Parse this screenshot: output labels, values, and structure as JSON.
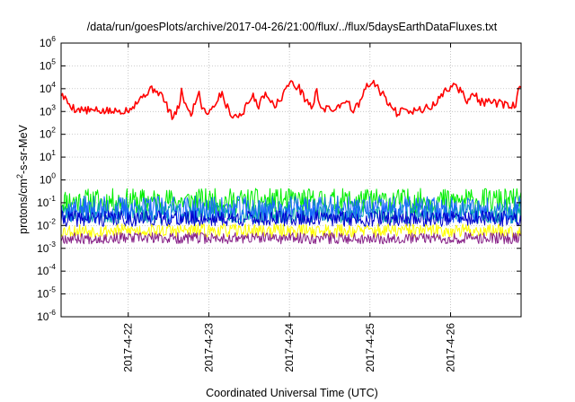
{
  "chart_data": {
    "type": "line",
    "title": "/data/run/goesPlots/archive/2017-04-26/21:00/flux/../flux/5daysEarthDataFluxes.txt",
    "xlabel": "Coordinated Universal Time (UTC)",
    "ylabel": {
      "prefix": "protons/cm",
      "sup": "2",
      "suffix": "-s-sr-MeV"
    },
    "yscale": "log",
    "ylim": [
      1e-06,
      1000000.0
    ],
    "y_ticks": [
      {
        "base": "10",
        "exp": "-6",
        "value": 1e-06
      },
      {
        "base": "10",
        "exp": "-5",
        "value": 1e-05
      },
      {
        "base": "10",
        "exp": "-4",
        "value": 0.0001
      },
      {
        "base": "10",
        "exp": "-3",
        "value": 0.001
      },
      {
        "base": "10",
        "exp": "-2",
        "value": 0.01
      },
      {
        "base": "10",
        "exp": "-1",
        "value": 0.1
      },
      {
        "base": "10",
        "exp": "0",
        "value": 1
      },
      {
        "base": "10",
        "exp": "1",
        "value": 10
      },
      {
        "base": "10",
        "exp": "2",
        "value": 100
      },
      {
        "base": "10",
        "exp": "3",
        "value": 1000
      },
      {
        "base": "10",
        "exp": "4",
        "value": 10000
      },
      {
        "base": "10",
        "exp": "5",
        "value": 100000
      },
      {
        "base": "10",
        "exp": "6",
        "value": 1000000
      }
    ],
    "xlim": [
      "2017-04-21T04:00",
      "2017-04-26T21:00"
    ],
    "x_ticks": [
      {
        "label": "2017-4-22",
        "value": "2017-04-22T00:00"
      },
      {
        "label": "2017-4-23",
        "value": "2017-04-23T00:00"
      },
      {
        "label": "2017-4-24",
        "value": "2017-04-24T00:00"
      },
      {
        "label": "2017-4-25",
        "value": "2017-04-25T00:00"
      },
      {
        "label": "2017-4-26",
        "value": "2017-04-26T00:00"
      }
    ],
    "grid": true,
    "series": [
      {
        "color": "#ff0000",
        "style": "profile",
        "noise": 0.18,
        "points": [
          [
            "2017-04-21T04:00",
            6000
          ],
          [
            "2017-04-21T06:00",
            2500
          ],
          [
            "2017-04-21T08:00",
            1300
          ],
          [
            "2017-04-21T12:00",
            1100
          ],
          [
            "2017-04-21T16:00",
            1050
          ],
          [
            "2017-04-21T20:00",
            1000
          ],
          [
            "2017-04-22T00:00",
            1200
          ],
          [
            "2017-04-22T03:00",
            3000
          ],
          [
            "2017-04-22T06:00",
            8000
          ],
          [
            "2017-04-22T08:00",
            10000
          ],
          [
            "2017-04-22T10:00",
            5000
          ],
          [
            "2017-04-22T12:00",
            1200
          ],
          [
            "2017-04-22T13:30",
            500
          ],
          [
            "2017-04-22T15:00",
            1500
          ],
          [
            "2017-04-22T16:00",
            9000
          ],
          [
            "2017-04-22T17:00",
            2000
          ],
          [
            "2017-04-22T18:30",
            700
          ],
          [
            "2017-04-22T20:00",
            2500
          ],
          [
            "2017-04-22T21:00",
            8000
          ],
          [
            "2017-04-22T22:00",
            1500
          ],
          [
            "2017-04-23T00:00",
            900
          ],
          [
            "2017-04-23T02:00",
            2500
          ],
          [
            "2017-04-23T04:00",
            7000
          ],
          [
            "2017-04-23T05:00",
            2000
          ],
          [
            "2017-04-23T07:00",
            700
          ],
          [
            "2017-04-23T09:00",
            600
          ],
          [
            "2017-04-23T11:00",
            1500
          ],
          [
            "2017-04-23T13:00",
            5000
          ],
          [
            "2017-04-23T15:00",
            1800
          ],
          [
            "2017-04-23T17:00",
            8000
          ],
          [
            "2017-04-23T19:00",
            2000
          ],
          [
            "2017-04-23T21:00",
            2500
          ],
          [
            "2017-04-23T23:00",
            12000
          ],
          [
            "2017-04-24T01:00",
            18000
          ],
          [
            "2017-04-24T03:00",
            10000
          ],
          [
            "2017-04-24T05:00",
            3000
          ],
          [
            "2017-04-24T07:00",
            1500
          ],
          [
            "2017-04-24T08:00",
            9000
          ],
          [
            "2017-04-24T09:00",
            2000
          ],
          [
            "2017-04-24T11:00",
            1200
          ],
          [
            "2017-04-24T14:00",
            1400
          ],
          [
            "2017-04-24T17:00",
            3500
          ],
          [
            "2017-04-24T19:00",
            1000
          ],
          [
            "2017-04-24T21:00",
            2500
          ],
          [
            "2017-04-24T23:00",
            12000
          ],
          [
            "2017-04-25T01:00",
            18000
          ],
          [
            "2017-04-25T03:00",
            8000
          ],
          [
            "2017-04-25T05:00",
            3000
          ],
          [
            "2017-04-25T07:00",
            1200
          ],
          [
            "2017-04-25T08:30",
            700
          ],
          [
            "2017-04-25T10:00",
            2000
          ],
          [
            "2017-04-25T12:00",
            1000
          ],
          [
            "2017-04-25T15:00",
            1200
          ],
          [
            "2017-04-25T18:00",
            1500
          ],
          [
            "2017-04-25T21:00",
            4000
          ],
          [
            "2017-04-25T23:00",
            10000
          ],
          [
            "2017-04-26T01:00",
            14000
          ],
          [
            "2017-04-26T03:00",
            8000
          ],
          [
            "2017-04-26T05:00",
            3000
          ],
          [
            "2017-04-26T07:00",
            6000
          ],
          [
            "2017-04-26T09:00",
            2500
          ],
          [
            "2017-04-26T12:00",
            2500
          ],
          [
            "2017-04-26T15:00",
            2200
          ],
          [
            "2017-04-26T18:00",
            1400
          ],
          [
            "2017-04-26T19:30",
            2500
          ],
          [
            "2017-04-26T20:30",
            12000
          ],
          [
            "2017-04-26T21:00",
            13000
          ]
        ]
      },
      {
        "color": "#00ee00",
        "style": "noise",
        "level": 0.12,
        "noise": 0.55,
        "seed": 11
      },
      {
        "color": "#00a8a8",
        "style": "noise",
        "level": 0.035,
        "noise": 0.45,
        "seed": 23
      },
      {
        "color": "#1a66ff",
        "style": "noise",
        "level": 0.05,
        "noise": 0.6,
        "seed": 37
      },
      {
        "color": "#0000cc",
        "style": "noise",
        "level": 0.02,
        "noise": 0.35,
        "seed": 41
      },
      {
        "color": "#ffff00",
        "style": "noise",
        "level": 0.006,
        "noise": 0.3,
        "seed": 53
      },
      {
        "color": "#882288",
        "style": "noise",
        "level": 0.0028,
        "noise": 0.25,
        "seed": 67
      }
    ]
  }
}
